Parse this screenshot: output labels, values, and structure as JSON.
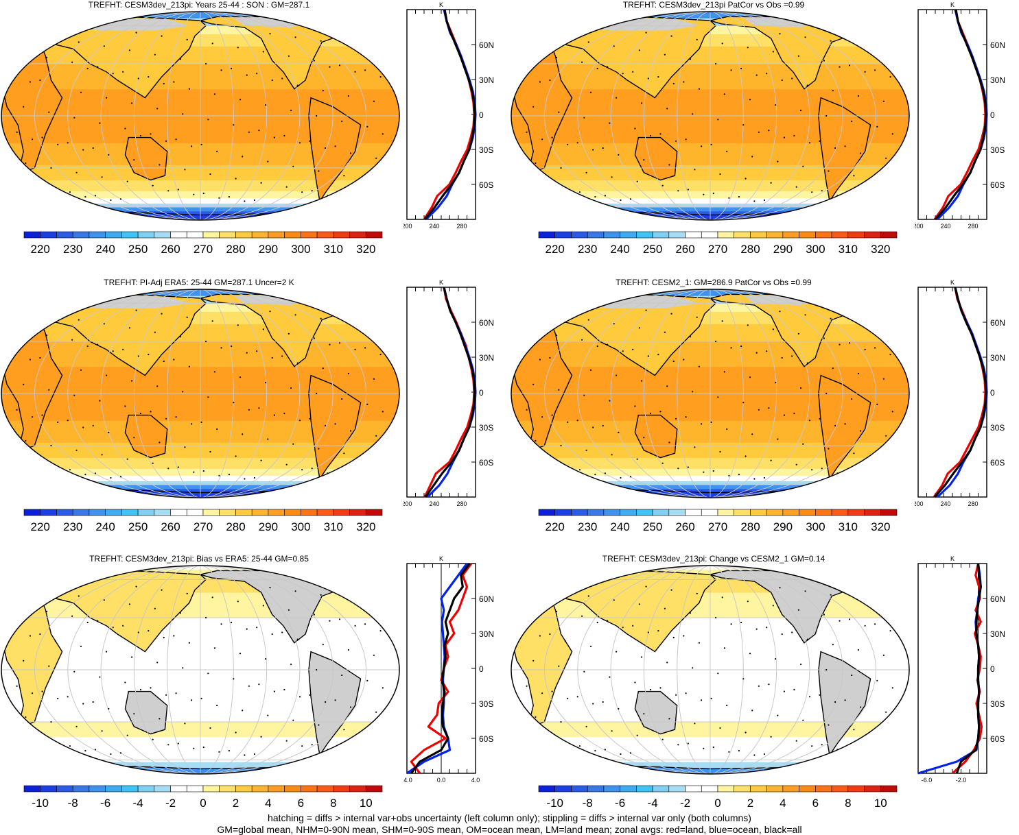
{
  "colors": {
    "land": "#cfcfcf",
    "grid": "#c8c8c8",
    "land_zonal": "#ee0000",
    "ocean_zonal": "#0022ee",
    "all_zonal": "#000000"
  },
  "temp_colorbar": {
    "colors": [
      "#0b1fdc",
      "#1a3fe6",
      "#2a5be8",
      "#3878ea",
      "#3f92ef",
      "#3eacf2",
      "#3dc3f5",
      "#7fd0f3",
      "#a7dcf5",
      "#ffffff",
      "#ffffff",
      "#fff4a0",
      "#ffe066",
      "#ffcb3d",
      "#ffb52b",
      "#ff9e1f",
      "#ff8a12",
      "#ff7312",
      "#ff5a15",
      "#f43a15",
      "#e02010",
      "#c40808"
    ],
    "labels": [
      "220",
      "230",
      "240",
      "250",
      "260",
      "270",
      "280",
      "290",
      "300",
      "310",
      "320"
    ]
  },
  "diff_colorbar": {
    "colors": [
      "#0b1fdc",
      "#1a3fe6",
      "#2a5be8",
      "#3878ea",
      "#3f92ef",
      "#3eacf2",
      "#3dc3f5",
      "#7fd0f3",
      "#a7dcf5",
      "#ffffff",
      "#ffffff",
      "#fff4a0",
      "#ffe066",
      "#ffcb3d",
      "#ffb52b",
      "#ff9e1f",
      "#ff8a12",
      "#ff7312",
      "#ff5a15",
      "#f43a15",
      "#e02010",
      "#c40808"
    ],
    "labels": [
      "-10",
      "-8",
      "-6",
      "-4",
      "-2",
      "0",
      "2",
      "4",
      "6",
      "8",
      "10"
    ]
  },
  "lat_labels": [
    "60N",
    "30N",
    "0",
    "30S",
    "60S"
  ],
  "zonal_unit": "K",
  "chart_data": [
    {
      "type": "heatmap",
      "title": "TREFHT: CESM3dev_213pi: Years 25-44 : SON : GM=287.1",
      "field": "absolute",
      "zonal_plot": {
        "xticks": [
          "200",
          "240",
          "280"
        ],
        "xlim": [
          200,
          300
        ],
        "ylim": [
          -90,
          90
        ],
        "lat": [
          -90,
          -80,
          -70,
          -60,
          -50,
          -40,
          -30,
          -20,
          -10,
          0,
          10,
          20,
          30,
          40,
          50,
          60,
          70,
          80,
          90
        ],
        "series": [
          {
            "name": "red=land",
            "values": [
              225,
              236,
              244,
              262,
              271,
              279,
              288,
              293,
              297,
              298,
              297,
              294,
              290,
              285,
              278,
              272,
              265,
              258,
              255
            ]
          },
          {
            "name": "blue=ocean",
            "values": [
              228,
              245,
              258,
              266,
              276,
              283,
              291,
              296,
              299,
              300,
              299,
              296,
              291,
              285,
              279,
              272,
              263,
              258,
              254
            ]
          },
          {
            "name": "black=all",
            "values": [
              226,
              240,
              252,
              265,
              276,
              283,
              291,
              295,
              298,
              299,
              298,
              295,
              290,
              284,
              278,
              271,
              264,
              258,
              255
            ]
          }
        ]
      }
    },
    {
      "type": "heatmap",
      "title": "TREFHT: CESM3dev_213pi PatCor vs Obs =0.99",
      "field": "absolute",
      "zonal_plot": {
        "xticks": [
          "200",
          "240",
          "280"
        ],
        "xlim": [
          200,
          300
        ],
        "ylim": [
          -90,
          90
        ],
        "lat": [
          -90,
          -80,
          -70,
          -60,
          -50,
          -40,
          -30,
          -20,
          -10,
          0,
          10,
          20,
          30,
          40,
          50,
          60,
          70,
          80,
          90
        ],
        "series": [
          {
            "name": "red=land",
            "values": [
              224,
              236,
              244,
              262,
              271,
              279,
              288,
              293,
              297,
              298,
              297,
              294,
              290,
              285,
              278,
              272,
              265,
              258,
              255
            ]
          },
          {
            "name": "blue=ocean",
            "values": [
              228,
              245,
              258,
              266,
              276,
              283,
              291,
              296,
              299,
              300,
              299,
              296,
              291,
              285,
              279,
              272,
              263,
              258,
              254
            ]
          },
          {
            "name": "black=all",
            "values": [
              225,
              240,
              252,
              265,
              276,
              283,
              291,
              295,
              298,
              299,
              298,
              295,
              290,
              284,
              278,
              271,
              264,
              258,
              255
            ]
          }
        ]
      }
    },
    {
      "type": "heatmap",
      "title": "TREFHT: PI-Adj ERA5: 25-44 GM=287.1 Uncer=2 K",
      "field": "absolute",
      "zonal_plot": {
        "xticks": [
          "200",
          "240",
          "280"
        ],
        "xlim": [
          200,
          300
        ],
        "ylim": [
          -90,
          90
        ],
        "lat": [
          -90,
          -80,
          -70,
          -60,
          -50,
          -40,
          -30,
          -20,
          -10,
          0,
          10,
          20,
          30,
          40,
          50,
          60,
          70,
          80,
          90
        ],
        "series": [
          {
            "name": "red=land",
            "values": [
              226,
              234,
              242,
              262,
              271,
              279,
              288,
              293,
              297,
              298,
              297,
              294,
              290,
              286,
              279,
              272,
              264,
              257,
              254
            ]
          },
          {
            "name": "blue=ocean",
            "values": [
              230,
              247,
              259,
              267,
              276,
              283,
              291,
              296,
              299,
              300,
              299,
              296,
              291,
              285,
              279,
              271,
              263,
              258,
              254
            ]
          },
          {
            "name": "black=all",
            "values": [
              227,
              239,
              251,
              265,
              276,
              283,
              291,
              295,
              298,
              299,
              298,
              295,
              290,
              284,
              278,
              271,
              263,
              258,
              254
            ]
          }
        ]
      }
    },
    {
      "type": "heatmap",
      "title": "TREFHT: CESM2_1: GM=286.9 PatCor vs Obs =0.99",
      "field": "absolute",
      "zonal_plot": {
        "xticks": [
          "200",
          "240",
          "280"
        ],
        "xlim": [
          200,
          300
        ],
        "ylim": [
          -90,
          90
        ],
        "lat": [
          -90,
          -80,
          -70,
          -60,
          -50,
          -40,
          -30,
          -20,
          -10,
          0,
          10,
          20,
          30,
          40,
          50,
          60,
          70,
          80,
          90
        ],
        "series": [
          {
            "name": "red=land",
            "values": [
              223,
              235,
              243,
              261,
              270,
              279,
              288,
              293,
              297,
              298,
              297,
              294,
              290,
              285,
              278,
              271,
              264,
              257,
              254
            ]
          },
          {
            "name": "blue=ocean",
            "values": [
              228,
              246,
              258,
              266,
              276,
              283,
              291,
              296,
              299,
              300,
              299,
              296,
              291,
              285,
              279,
              271,
              263,
              258,
              254
            ]
          },
          {
            "name": "black=all",
            "values": [
              224,
              239,
              251,
              264,
              276,
              283,
              291,
              295,
              298,
              299,
              298,
              295,
              290,
              284,
              278,
              270,
              263,
              258,
              254
            ]
          }
        ]
      }
    },
    {
      "type": "heatmap",
      "title": "TREFHT: CESM3dev_213pi: Bias vs ERA5: 25-44  GM=0.85",
      "field": "difference",
      "zonal_plot": {
        "xticks": [
          "-4.0",
          "0.0",
          "4.0"
        ],
        "xlim": [
          -4,
          4
        ],
        "ylim": [
          -90,
          90
        ],
        "lat": [
          -90,
          -80,
          -70,
          -60,
          -50,
          -40,
          -30,
          -20,
          -10,
          0,
          10,
          20,
          30,
          40,
          50,
          60,
          70,
          80,
          90
        ],
        "series": [
          {
            "name": "red=land",
            "values": [
              -2.5,
              -3.5,
              -2.0,
              0.5,
              -1.5,
              -0.5,
              -0.3,
              0.8,
              0.0,
              0.3,
              0.8,
              0.5,
              1.5,
              1.0,
              2.0,
              2.5,
              3.0,
              2.5,
              3.5
            ]
          },
          {
            "name": "blue=ocean",
            "values": [
              -4.0,
              -2.0,
              1.0,
              0.8,
              0.3,
              0.2,
              0.3,
              0.3,
              0.2,
              0.3,
              0.4,
              0.3,
              0.2,
              0.1,
              0.3,
              0.0,
              1.0,
              2.0,
              3.0
            ]
          },
          {
            "name": "black=all",
            "values": [
              -3.5,
              -2.5,
              0.0,
              0.8,
              0.2,
              0.1,
              0.2,
              0.4,
              0.1,
              0.3,
              0.5,
              0.4,
              0.8,
              0.5,
              1.0,
              1.5,
              2.5,
              2.3,
              3.3
            ]
          }
        ]
      }
    },
    {
      "type": "heatmap",
      "title": "TREFHT: CESM3dev_213pi: Change vs CESM2_1 GM=0.14",
      "field": "difference",
      "zonal_plot": {
        "xticks": [
          "-6.0",
          "-2.0"
        ],
        "xlim": [
          -7,
          1
        ],
        "ylim": [
          -90,
          90
        ],
        "lat": [
          -90,
          -80,
          -70,
          -60,
          -50,
          -40,
          -30,
          -20,
          -10,
          0,
          10,
          20,
          30,
          40,
          50,
          60,
          70,
          80,
          90
        ],
        "series": [
          {
            "name": "red=land",
            "values": [
              -3.0,
              -1.5,
              -0.5,
              0.2,
              0.4,
              0.1,
              -0.2,
              0.2,
              -0.1,
              0.2,
              0.3,
              0.0,
              -0.4,
              0.3,
              -0.3,
              0.2,
              0.1,
              -0.3,
              0.0
            ]
          },
          {
            "name": "blue=ocean",
            "values": [
              -7.0,
              -2.5,
              -0.2,
              0.0,
              0.1,
              0.0,
              0.0,
              0.1,
              0.0,
              0.0,
              0.1,
              0.0,
              -0.2,
              -0.3,
              -0.1,
              0.0,
              0.3,
              0.2,
              0.0
            ]
          },
          {
            "name": "black=all",
            "values": [
              -2.5,
              -2.0,
              -0.3,
              0.0,
              0.1,
              0.0,
              0.0,
              0.1,
              0.0,
              0.0,
              0.1,
              0.0,
              -0.2,
              -0.2,
              -0.1,
              0.1,
              0.3,
              0.1,
              0.0
            ]
          }
        ]
      }
    }
  ],
  "footer": {
    "line1": "hatching = diffs > internal var+obs uncertainty (left column only); stippling = diffs > internal var only (both columns)",
    "line2": "GM=global mean, NHM=0-90N mean, SHM=0-90S mean, OM=ocean mean, LM=land mean; zonal avgs: red=land, blue=ocean, black=all"
  }
}
